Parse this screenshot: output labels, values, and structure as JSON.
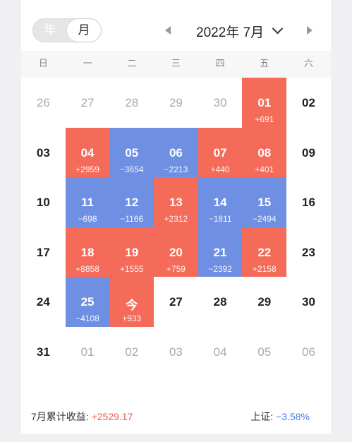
{
  "toggle": {
    "year_label": "年",
    "month_label": "月",
    "selected": "月"
  },
  "nav": {
    "title": "2022年 7月"
  },
  "weekdays": [
    "日",
    "一",
    "二",
    "三",
    "四",
    "五",
    "六"
  ],
  "colors": {
    "gain": "#f56b5a",
    "loss": "#6e8fe2"
  },
  "calendar": {
    "r0": [
      {
        "d": "26",
        "p": ""
      },
      {
        "d": "27",
        "p": ""
      },
      {
        "d": "28",
        "p": ""
      },
      {
        "d": "29",
        "p": ""
      },
      {
        "d": "30",
        "p": ""
      },
      {
        "d": "01",
        "p": "+691"
      },
      {
        "d": "02",
        "p": ""
      }
    ],
    "r1": [
      {
        "d": "03",
        "p": ""
      },
      {
        "d": "04",
        "p": "+2959"
      },
      {
        "d": "05",
        "p": "−3654"
      },
      {
        "d": "06",
        "p": "−2213"
      },
      {
        "d": "07",
        "p": "+440"
      },
      {
        "d": "08",
        "p": "+401"
      },
      {
        "d": "09",
        "p": ""
      }
    ],
    "r2": [
      {
        "d": "10",
        "p": ""
      },
      {
        "d": "11",
        "p": "−698"
      },
      {
        "d": "12",
        "p": "−1166"
      },
      {
        "d": "13",
        "p": "+2312"
      },
      {
        "d": "14",
        "p": "−1811"
      },
      {
        "d": "15",
        "p": "−2494"
      },
      {
        "d": "16",
        "p": ""
      }
    ],
    "r3": [
      {
        "d": "17",
        "p": ""
      },
      {
        "d": "18",
        "p": "+8858"
      },
      {
        "d": "19",
        "p": "+1555"
      },
      {
        "d": "20",
        "p": "+759"
      },
      {
        "d": "21",
        "p": "−2392"
      },
      {
        "d": "22",
        "p": "+2158"
      },
      {
        "d": "23",
        "p": ""
      }
    ],
    "r4": [
      {
        "d": "24",
        "p": ""
      },
      {
        "d": "25",
        "p": "−4108"
      },
      {
        "d": "今",
        "p": "+933"
      },
      {
        "d": "27",
        "p": ""
      },
      {
        "d": "28",
        "p": ""
      },
      {
        "d": "29",
        "p": ""
      },
      {
        "d": "30",
        "p": ""
      }
    ],
    "r5": [
      {
        "d": "31",
        "p": ""
      },
      {
        "d": "01",
        "p": ""
      },
      {
        "d": "02",
        "p": ""
      },
      {
        "d": "03",
        "p": ""
      },
      {
        "d": "04",
        "p": ""
      },
      {
        "d": "05",
        "p": ""
      },
      {
        "d": "06",
        "p": ""
      }
    ]
  },
  "footer": {
    "cumulative_label": "7月累计收益:",
    "cumulative_value": "+2529.17",
    "index_label": "上证:",
    "index_value": "−3.58%"
  }
}
